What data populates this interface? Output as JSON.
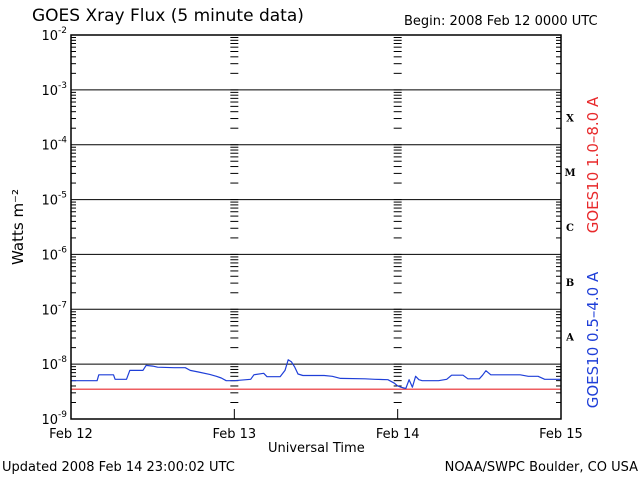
{
  "title": "GOES Xray Flux (5 minute data)",
  "begin_label": "Begin:  2008 Feb 12 0000 UTC",
  "updated_label": "Updated 2008 Feb 14 23:00:02 UTC",
  "credit_label": "NOAA/SWPC Boulder, CO USA",
  "colors": {
    "long_channel": "#e8292b",
    "short_channel": "#1f3fd8",
    "axes": "#000000"
  },
  "chart_data": {
    "type": "line",
    "title": "GOES Xray Flux (5 minute data)",
    "xlabel": "Universal Time",
    "ylabel": "Watts m⁻²",
    "yscale": "log",
    "ylim": [
      1e-09,
      0.01
    ],
    "xlim": [
      0,
      3
    ],
    "x_ticks": [
      {
        "x": 0,
        "label": "Feb 12"
      },
      {
        "x": 1,
        "label": "Feb 13"
      },
      {
        "x": 2,
        "label": "Feb 14"
      },
      {
        "x": 3,
        "label": "Feb 15"
      }
    ],
    "y_ticks": [
      {
        "exp": -9,
        "base": "10",
        "sup": "-9"
      },
      {
        "exp": -8,
        "base": "10",
        "sup": "-8"
      },
      {
        "exp": -7,
        "base": "10",
        "sup": "-7"
      },
      {
        "exp": -6,
        "base": "10",
        "sup": "-6"
      },
      {
        "exp": -5,
        "base": "10",
        "sup": "-5"
      },
      {
        "exp": -4,
        "base": "10",
        "sup": "-4"
      },
      {
        "exp": -3,
        "base": "10",
        "sup": "-3"
      },
      {
        "exp": -2,
        "base": "10",
        "sup": "-2"
      }
    ],
    "flare_classes": [
      {
        "label": "A",
        "exp": -7.5
      },
      {
        "label": "B",
        "exp": -6.5
      },
      {
        "label": "C",
        "exp": -5.5
      },
      {
        "label": "M",
        "exp": -4.5
      },
      {
        "label": "X",
        "exp": -3.5
      }
    ],
    "grid": true,
    "legend_position": "right-vertical",
    "series": [
      {
        "name": "GOES10 1.0–8.0 A",
        "color": "#e8292b",
        "points": [
          [
            0,
            3.5e-09
          ],
          [
            3,
            3.5e-09
          ]
        ]
      },
      {
        "name": "GOES10 0.5–4.0 A",
        "color": "#1f3fd8",
        "points": [
          [
            0.0,
            5e-09
          ],
          [
            0.16,
            5e-09
          ],
          [
            0.17,
            6.4e-09
          ],
          [
            0.26,
            6.4e-09
          ],
          [
            0.27,
            5.3e-09
          ],
          [
            0.34,
            5.3e-09
          ],
          [
            0.36,
            7.7e-09
          ],
          [
            0.44,
            7.7e-09
          ],
          [
            0.46,
            9.5e-09
          ],
          [
            0.5,
            9.2e-09
          ],
          [
            0.53,
            8.8e-09
          ],
          [
            0.63,
            8.6e-09
          ],
          [
            0.7,
            8.6e-09
          ],
          [
            0.73,
            7.7e-09
          ],
          [
            0.78,
            7.2e-09
          ],
          [
            0.85,
            6.5e-09
          ],
          [
            0.89,
            6e-09
          ],
          [
            0.92,
            5.6e-09
          ],
          [
            0.95,
            5e-09
          ],
          [
            1.0,
            5e-09
          ],
          [
            1.1,
            5.3e-09
          ],
          [
            1.12,
            6.4e-09
          ],
          [
            1.18,
            6.8e-09
          ],
          [
            1.2,
            5.9e-09
          ],
          [
            1.28,
            5.9e-09
          ],
          [
            1.31,
            7.7e-09
          ],
          [
            1.33,
            1.2e-08
          ],
          [
            1.35,
            1.1e-08
          ],
          [
            1.37,
            8.8e-09
          ],
          [
            1.39,
            6.6e-09
          ],
          [
            1.42,
            6.2e-09
          ],
          [
            1.55,
            6.2e-09
          ],
          [
            1.6,
            6e-09
          ],
          [
            1.65,
            5.5e-09
          ],
          [
            1.8,
            5.4e-09
          ],
          [
            1.86,
            5.3e-09
          ],
          [
            1.94,
            5.2e-09
          ],
          [
            1.98,
            4.5e-09
          ],
          [
            2.0,
            4e-09
          ],
          [
            2.02,
            3.8e-09
          ],
          [
            2.05,
            3.6e-09
          ],
          [
            2.07,
            5.2e-09
          ],
          [
            2.09,
            3.8e-09
          ],
          [
            2.11,
            6e-09
          ],
          [
            2.13,
            5.2e-09
          ],
          [
            2.15,
            5e-09
          ],
          [
            2.25,
            5e-09
          ],
          [
            2.3,
            5.3e-09
          ],
          [
            2.33,
            6.3e-09
          ],
          [
            2.4,
            6.3e-09
          ],
          [
            2.43,
            5.4e-09
          ],
          [
            2.5,
            5.4e-09
          ],
          [
            2.52,
            6.3e-09
          ],
          [
            2.54,
            7.6e-09
          ],
          [
            2.57,
            6.4e-09
          ],
          [
            2.75,
            6.4e-09
          ],
          [
            2.8,
            6e-09
          ],
          [
            2.86,
            6e-09
          ],
          [
            2.9,
            5.3e-09
          ],
          [
            2.95,
            5.3e-09
          ],
          [
            3.0,
            5.3e-09
          ]
        ]
      }
    ]
  }
}
